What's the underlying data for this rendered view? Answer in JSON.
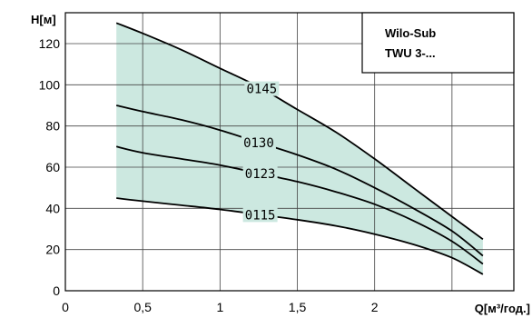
{
  "chart_data": {
    "type": "line",
    "title": "",
    "xlabel": "Q[м³/год.]",
    "ylabel": "H[м]",
    "legend_box": {
      "line1": "Wilo-Sub",
      "line2": "TWU 3-..."
    },
    "xlim": [
      0,
      2.9
    ],
    "ylim": [
      0,
      135
    ],
    "x_ticks": [
      0,
      0.5,
      1,
      1.5,
      2
    ],
    "x_tick_labels": [
      "0",
      "0,5",
      "1",
      "1,5",
      "2"
    ],
    "y_ticks": [
      0,
      20,
      40,
      60,
      80,
      100,
      120
    ],
    "y_tick_labels": [
      "0",
      "20",
      "40",
      "60",
      "80",
      "100",
      "120"
    ],
    "grid": true,
    "band_color": "#cce8e0",
    "series": [
      {
        "name": "0145",
        "x": [
          0.33,
          0.5,
          0.75,
          1.0,
          1.25,
          1.5,
          1.75,
          2.0,
          2.25,
          2.5,
          2.7
        ],
        "y": [
          130,
          125,
          117,
          108,
          99,
          88,
          77,
          64,
          50,
          36,
          25
        ]
      },
      {
        "name": "0130",
        "x": [
          0.33,
          0.5,
          0.75,
          1.0,
          1.25,
          1.5,
          1.75,
          2.0,
          2.25,
          2.5,
          2.7
        ],
        "y": [
          90,
          87,
          83,
          78,
          72,
          66,
          59,
          50,
          40,
          29,
          17
        ]
      },
      {
        "name": "0123",
        "x": [
          0.33,
          0.5,
          0.75,
          1.0,
          1.25,
          1.5,
          1.75,
          2.0,
          2.25,
          2.5,
          2.7
        ],
        "y": [
          70,
          67,
          64,
          61,
          57,
          53,
          48,
          42,
          34,
          24,
          13
        ]
      },
      {
        "name": "0115",
        "x": [
          0.33,
          0.5,
          0.75,
          1.0,
          1.25,
          1.5,
          1.75,
          2.0,
          2.25,
          2.5,
          2.7
        ],
        "y": [
          45,
          43.5,
          41.5,
          39.5,
          37,
          34.5,
          31.5,
          27.5,
          22.5,
          16,
          8
        ]
      }
    ],
    "curve_label_x": {
      "0145": 1.27,
      "0130": 1.25,
      "0123": 1.26,
      "0115": 1.26
    }
  }
}
